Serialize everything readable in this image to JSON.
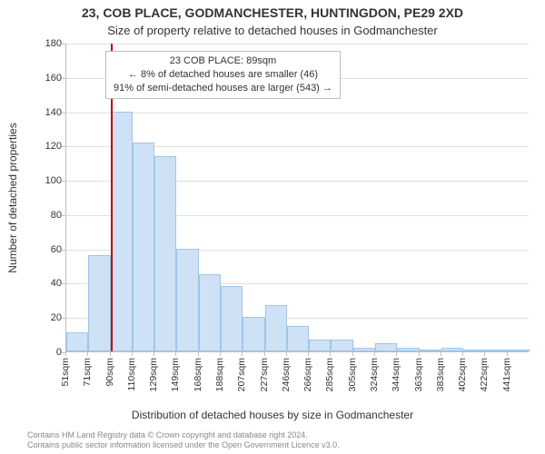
{
  "title": "23, COB PLACE, GODMANCHESTER, HUNTINGDON, PE29 2XD",
  "subtitle": "Size of property relative to detached houses in Godmanchester",
  "chart": {
    "type": "histogram",
    "x_categories": [
      "51sqm",
      "71sqm",
      "90sqm",
      "110sqm",
      "129sqm",
      "149sqm",
      "168sqm",
      "188sqm",
      "207sqm",
      "227sqm",
      "246sqm",
      "266sqm",
      "285sqm",
      "305sqm",
      "324sqm",
      "344sqm",
      "363sqm",
      "383sqm",
      "402sqm",
      "422sqm",
      "441sqm"
    ],
    "values": [
      11,
      56,
      140,
      122,
      114,
      60,
      45,
      38,
      20,
      27,
      15,
      7,
      7,
      2,
      5,
      2,
      1,
      2,
      0,
      0,
      1
    ],
    "marker_index": 2,
    "marker_color": "#c00000",
    "bar_fill": "#cfe1f5",
    "bar_border": "#9fc5e8",
    "y_label": "Number of detached properties",
    "x_label": "Distribution of detached houses by size in Godmanchester",
    "ylim": [
      0,
      180
    ],
    "ytick_step": 20,
    "grid_color": "#e0e0e0",
    "axis_color": "#bfbfbf",
    "label_fontsize": 12,
    "tick_fontsize": 11,
    "background_color": "#ffffff"
  },
  "annotation": {
    "line1": "23 COB PLACE: 89sqm",
    "line2": "← 8% of detached houses are smaller (46)",
    "line3": "91% of semi-detached houses are larger (543) →"
  },
  "footer": {
    "line1": "Contains HM Land Registry data © Crown copyright and database right 2024.",
    "line2": "Contains public sector information licensed under the Open Government Licence v3.0."
  }
}
